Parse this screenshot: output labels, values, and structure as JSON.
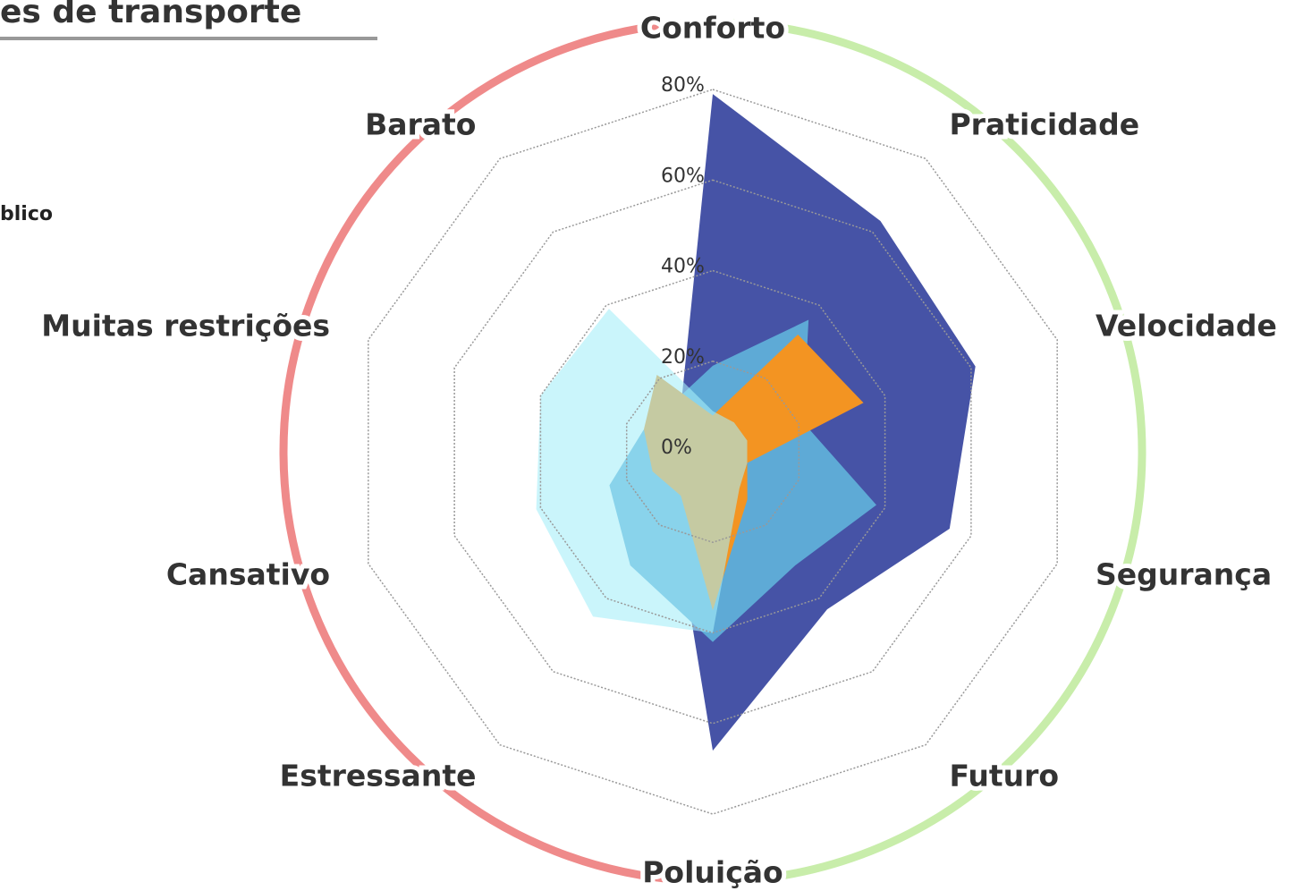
{
  "chart_data": {
    "type": "radar",
    "title": "es de transporte",
    "categories": [
      "Conforto",
      "Praticidade",
      "Velocidade",
      "Segurança",
      "Futuro",
      "Poluição",
      "Estressante",
      "Cansativo",
      "Muitas restrições",
      "Barato"
    ],
    "rlim": [
      0,
      80
    ],
    "rticks": [
      {
        "value": 0,
        "label": "0%"
      },
      {
        "value": 20,
        "label": "20%"
      },
      {
        "value": 40,
        "label": "40%"
      },
      {
        "value": 60,
        "label": "60%"
      },
      {
        "value": 80,
        "label": "80%"
      }
    ],
    "series": [
      {
        "color": "#4653a6",
        "values": [
          79,
          63,
          61,
          55,
          43,
          66,
          15,
          10,
          16,
          12
        ]
      },
      {
        "name": "blico",
        "color": "#5eaad6",
        "values": [
          19,
          36,
          21,
          38,
          31,
          42,
          31,
          24,
          16,
          14
        ]
      },
      {
        "color": "#f39422",
        "values": [
          8,
          32,
          35,
          8,
          13,
          35,
          12,
          14,
          16,
          21
        ]
      },
      {
        "color": "#a6eef8",
        "values": [
          9,
          8,
          8,
          8,
          10,
          40,
          45,
          41,
          40,
          39
        ]
      }
    ]
  }
}
